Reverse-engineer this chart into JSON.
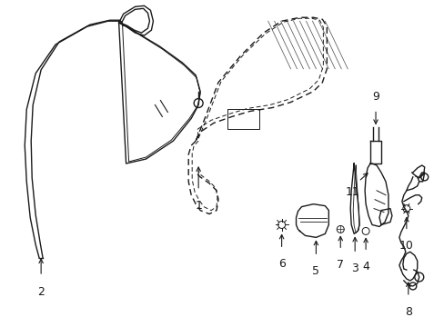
{
  "background_color": "#ffffff",
  "line_color": "#1a1a1a",
  "figsize": [
    4.89,
    3.6
  ],
  "dpi": 100,
  "label_fs": 9
}
